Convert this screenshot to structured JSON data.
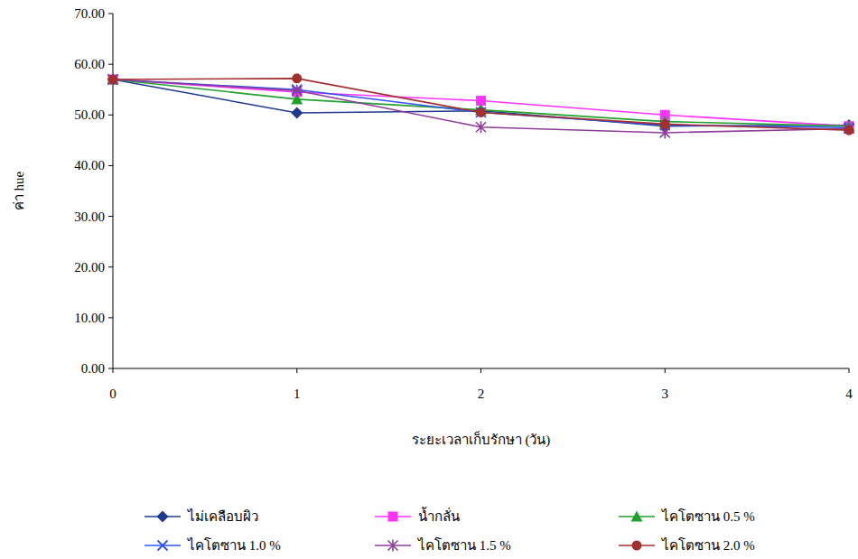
{
  "chart_data": {
    "type": "line",
    "x_label": "ระยะเวลาเก็บรักษา (วัน)",
    "y_label": "ค่า hue",
    "x": [
      0,
      1,
      2,
      3,
      4
    ],
    "xlim": [
      0,
      4
    ],
    "xticks": [
      0,
      1,
      2,
      3,
      4
    ],
    "ylim": [
      0,
      70
    ],
    "yticks": [
      {
        "value": 0,
        "label": "0.00"
      },
      {
        "value": 10,
        "label": "10.00"
      },
      {
        "value": 20,
        "label": "20.00"
      },
      {
        "value": 30,
        "label": "30.00"
      },
      {
        "value": 40,
        "label": "40.00"
      },
      {
        "value": 50,
        "label": "50.00"
      },
      {
        "value": 60,
        "label": "60.00"
      },
      {
        "value": 70,
        "label": "70.00"
      }
    ],
    "grid": false,
    "legend": "bottom",
    "series": [
      {
        "name": "ไม่เคลือบผิว",
        "color": "#1f3a8c",
        "marker": "diamond",
        "values": [
          57.0,
          50.4,
          50.8,
          47.8,
          48.0
        ]
      },
      {
        "name": "น้ำกลั่น",
        "color": "#ff33ff",
        "marker": "square",
        "values": [
          57.0,
          54.5,
          52.8,
          50.0,
          47.8
        ]
      },
      {
        "name": "ไคโตซาน 0.5 %",
        "color": "#22a02e",
        "marker": "triangle",
        "values": [
          57.0,
          53.1,
          51.0,
          48.7,
          47.8
        ]
      },
      {
        "name": "ไคโตซาน 1.0 %",
        "color": "#2f52f0",
        "marker": "x",
        "values": [
          57.0,
          55.0,
          50.5,
          48.0,
          47.5
        ]
      },
      {
        "name": "ไคโตซาน 1.5 %",
        "color": "#8e3c9a",
        "marker": "star",
        "values": [
          57.0,
          54.8,
          47.6,
          46.5,
          47.3
        ]
      },
      {
        "name": "ไคโตซาน 2.0 %",
        "color": "#a3302e",
        "marker": "circle",
        "values": [
          57.0,
          57.2,
          50.5,
          48.2,
          47.0
        ]
      }
    ]
  }
}
